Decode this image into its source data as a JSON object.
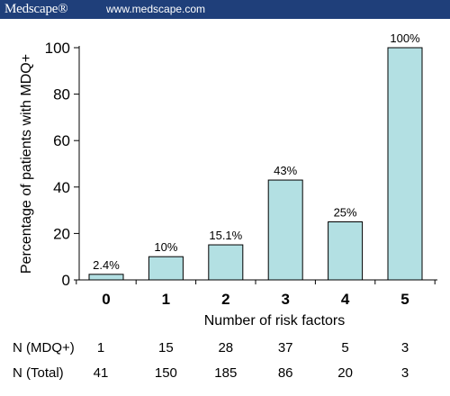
{
  "header": {
    "brand": "Medscape®",
    "url": "www.medscape.com"
  },
  "chart_data": {
    "type": "bar",
    "categories": [
      "0",
      "1",
      "2",
      "3",
      "4",
      "5"
    ],
    "values": [
      2.4,
      10,
      15.1,
      43,
      25,
      100
    ],
    "data_labels": [
      "2.4%",
      "10%",
      "15.1%",
      "43%",
      "25%",
      "100%"
    ],
    "title": "",
    "xlabel": "Number of risk factors",
    "ylabel": "Percentage of patients with MDQ+",
    "ylim": [
      0,
      100
    ],
    "yticks": [
      0,
      20,
      40,
      60,
      80,
      100
    ],
    "grid": false,
    "bar_color": "#b3e0e3",
    "table": {
      "rows": [
        {
          "label": "N (MDQ+)",
          "values": [
            "1",
            "15",
            "28",
            "37",
            "5",
            "3"
          ]
        },
        {
          "label": "N (Total)",
          "values": [
            "41",
            "150",
            "185",
            "86",
            "20",
            "3"
          ]
        }
      ]
    }
  }
}
